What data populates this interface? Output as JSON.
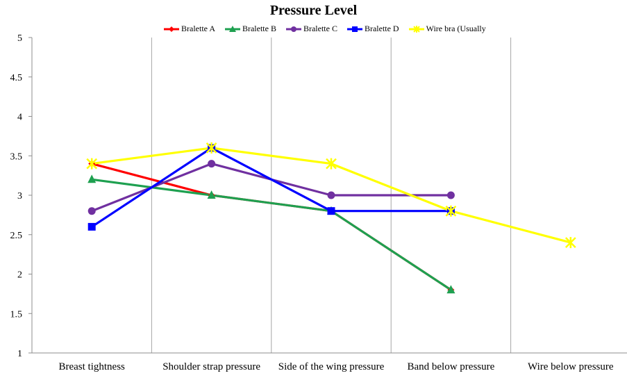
{
  "chart_data": {
    "type": "line",
    "title": "Pressure Level",
    "categories": [
      "Breast tightness",
      "Shoulder strap pressure",
      "Side of the wing pressure",
      "Band below pressure",
      "Wire below pressure"
    ],
    "ylim": [
      1,
      5
    ],
    "yticks": [
      "1",
      "1.5",
      "2",
      "2.5",
      "3",
      "3.5",
      "4",
      "4.5",
      "5"
    ],
    "grid": "vertical",
    "legend": "top",
    "series": [
      {
        "name": "Bralette A",
        "color": "#ff0000",
        "marker": "diamond",
        "values": [
          3.4,
          3.0,
          2.8,
          1.8,
          null
        ]
      },
      {
        "name": "Bralette B",
        "color": "#1ea050",
        "marker": "triangle",
        "values": [
          3.2,
          3.0,
          2.8,
          1.8,
          null
        ]
      },
      {
        "name": "Bralette C",
        "color": "#7030a0",
        "marker": "circle",
        "values": [
          2.8,
          3.4,
          3.0,
          3.0,
          null
        ]
      },
      {
        "name": "Bralette D",
        "color": "#0000ff",
        "marker": "square",
        "values": [
          2.6,
          3.6,
          2.8,
          2.8,
          null
        ]
      },
      {
        "name": "Wire bra (Usually",
        "color": "#ffff00",
        "marker": "star",
        "values": [
          3.4,
          3.6,
          3.4,
          2.8,
          2.4
        ]
      }
    ]
  }
}
